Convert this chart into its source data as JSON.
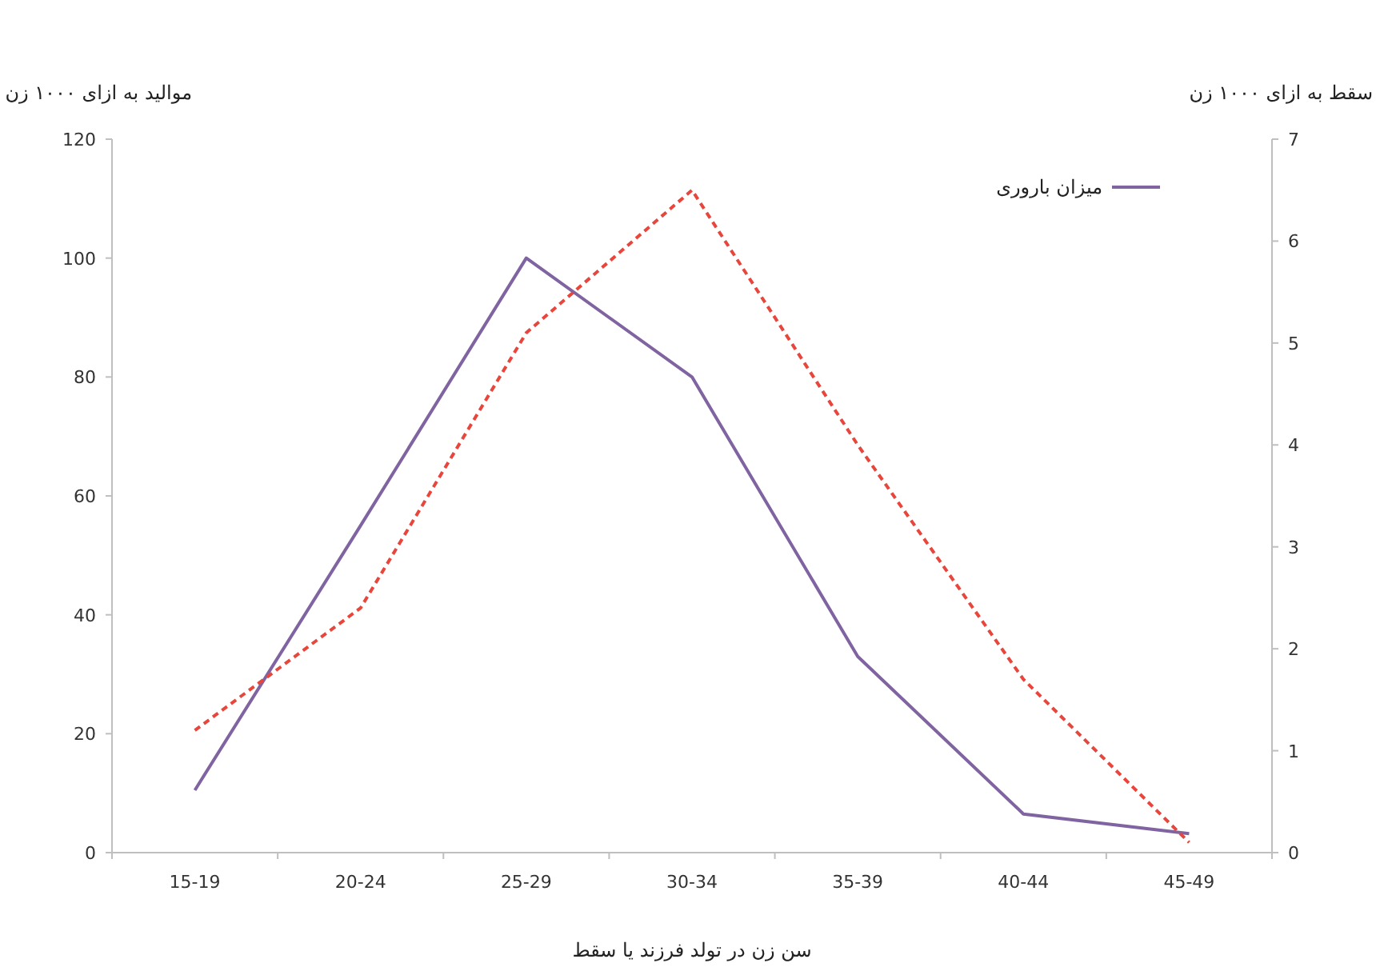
{
  "chart_data": {
    "type": "line",
    "xlabel": "سن زن در تولد فرزند یا سقط",
    "ylabel": "موالید به ازای ۱۰۰۰ زن",
    "y2label": "سقط به ازای ۱۰۰۰ زن",
    "categories": [
      "15-19",
      "20-24",
      "25-29",
      "30-34",
      "35-39",
      "40-44",
      "45-49"
    ],
    "series": [
      {
        "name": "میزان باروری",
        "color": "#8064a2",
        "line_style": "solid",
        "values": [
          10.5,
          55,
          100,
          80,
          33,
          6.5,
          3.2
        ]
      },
      {
        "color": "#e8463c",
        "line_style": "dashed",
        "axis": "y2",
        "values": [
          1.2,
          2.4,
          5.1,
          6.5,
          4.0,
          1.7,
          0.1
        ]
      }
    ],
    "ylim": [
      0,
      120
    ],
    "yticks": [
      0,
      20,
      40,
      60,
      80,
      100,
      120
    ],
    "y2lim": [
      0,
      7
    ],
    "y2ticks": [
      0,
      1,
      2,
      3,
      4,
      5,
      6,
      7
    ],
    "legend": "top right",
    "grid": false
  }
}
